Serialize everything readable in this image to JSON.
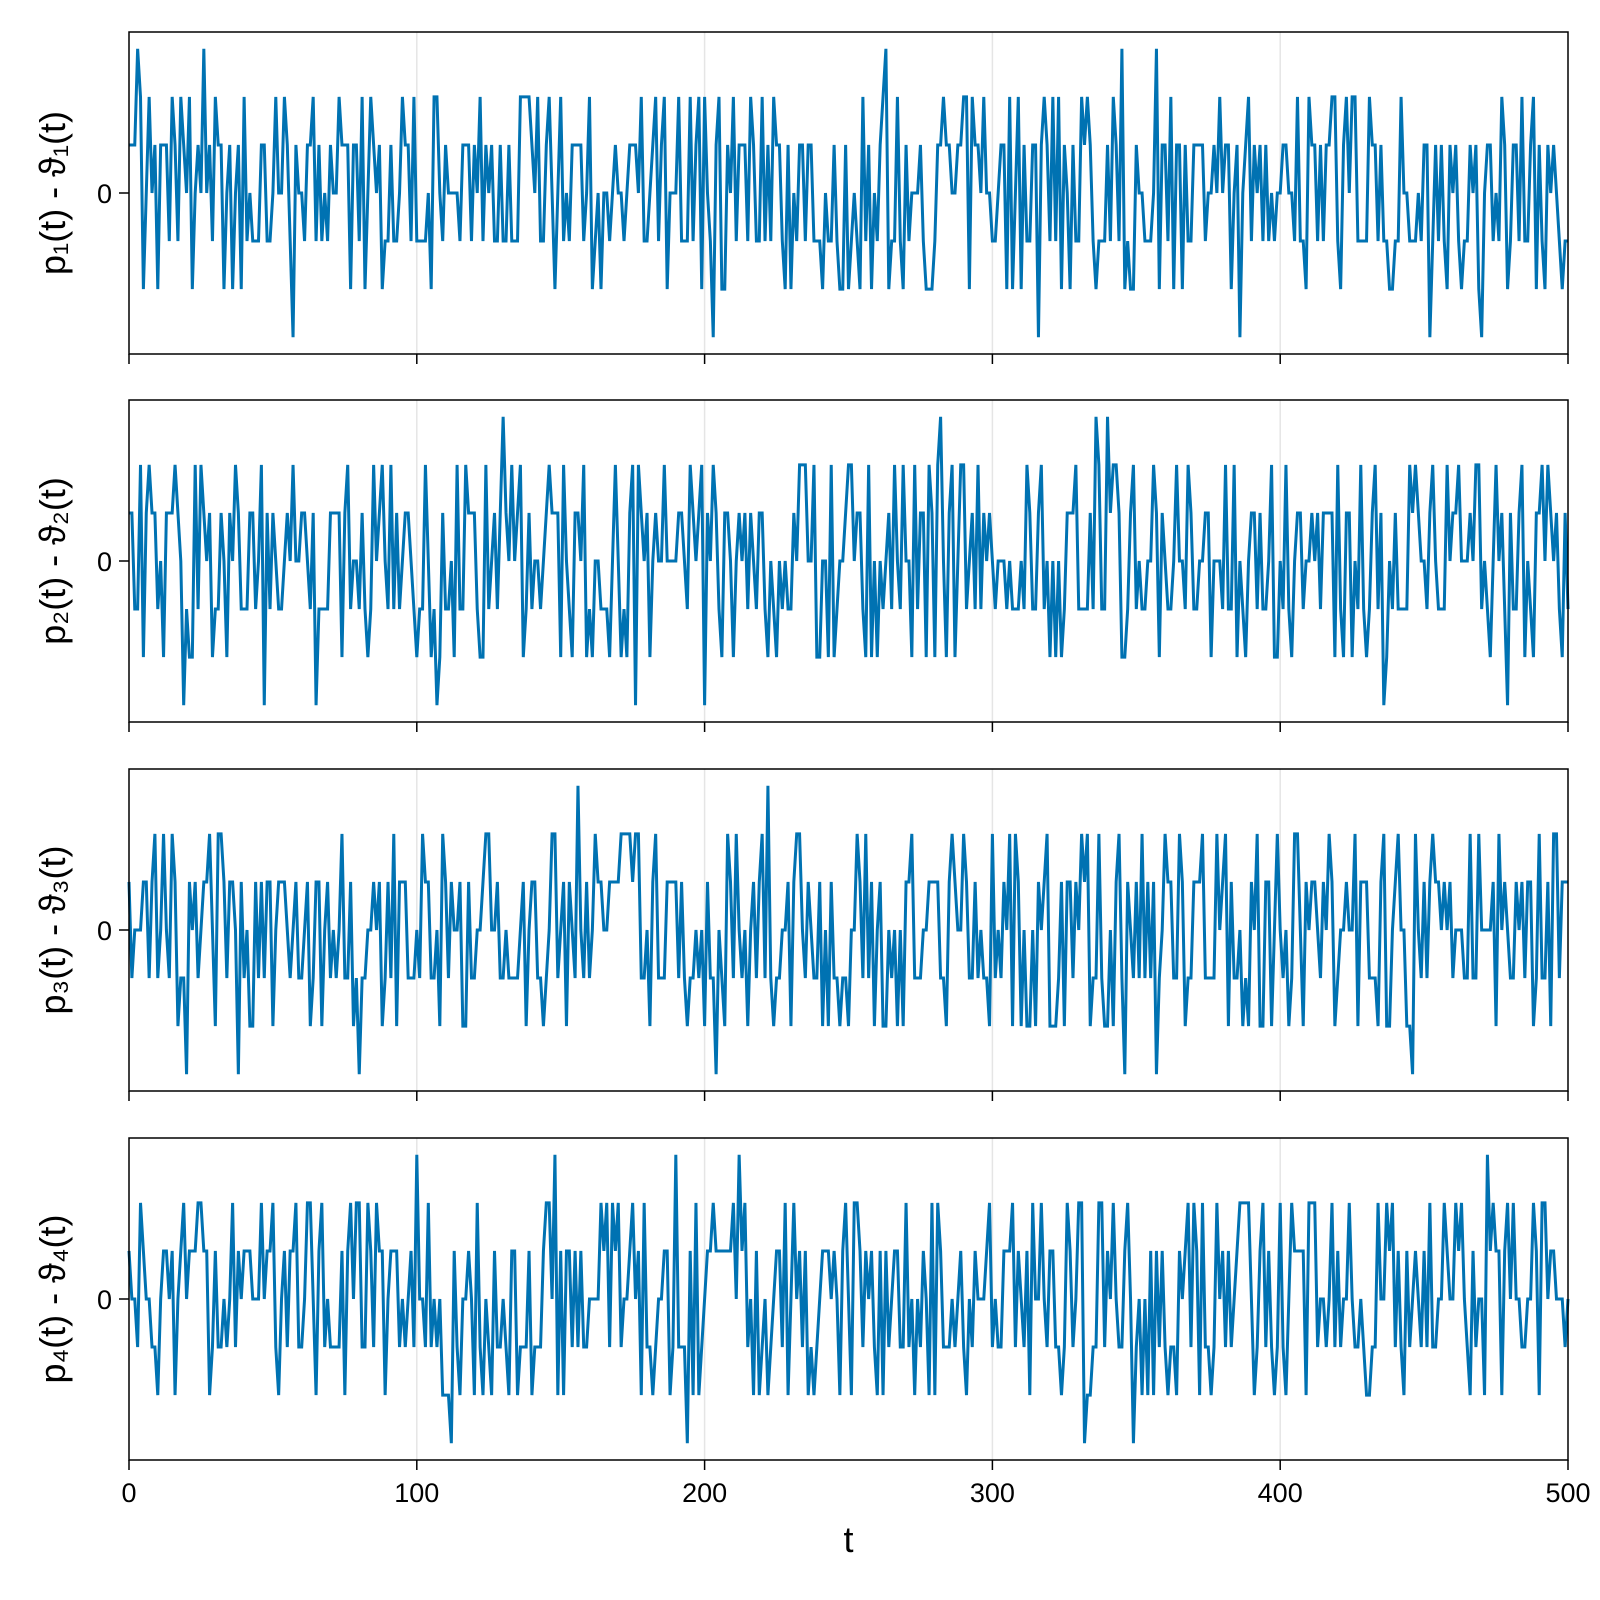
{
  "chart_data": {
    "type": "line",
    "layout": "stacked-panels-shared-x",
    "xlabel": "t",
    "xlim": [
      0,
      500
    ],
    "x_ticks": [
      0,
      100,
      200,
      300,
      400,
      500
    ],
    "x_tick_labels": [
      "0",
      "100",
      "200",
      "300",
      "400",
      "500"
    ],
    "grid": "vertical",
    "color": "#0072b2",
    "series_note": "Each panel is a stepwise integer-valued deviation series (levels -3..3), one value per unit of t from 0 to 500.",
    "panels": [
      {
        "ylabel": "p₁(t) - ϑ₁(t)",
        "ylim": [
          -3.35,
          3.35
        ],
        "y_ticks": [
          0
        ],
        "y_tick_labels": [
          "0"
        ],
        "seed": 11,
        "extremes": [
          {
            "t": 3,
            "value": 3
          },
          {
            "t": 26,
            "value": 3
          },
          {
            "t": 263,
            "value": 3
          },
          {
            "t": 345,
            "value": 3
          },
          {
            "t": 357,
            "value": 3
          },
          {
            "t": 57,
            "value": -3
          },
          {
            "t": 203,
            "value": -3
          },
          {
            "t": 316,
            "value": -3
          },
          {
            "t": 386,
            "value": -3
          },
          {
            "t": 452,
            "value": -3
          },
          {
            "t": 470,
            "value": -3
          }
        ]
      },
      {
        "ylabel": "p₂(t) - ϑ₂(t)",
        "ylim": [
          -3.35,
          3.35
        ],
        "y_ticks": [
          0
        ],
        "y_tick_labels": [
          "0"
        ],
        "seed": 23,
        "extremes": [
          {
            "t": 130,
            "value": 3
          },
          {
            "t": 282,
            "value": 3
          },
          {
            "t": 336,
            "value": 3
          },
          {
            "t": 340,
            "value": 3
          },
          {
            "t": 19,
            "value": -3
          },
          {
            "t": 47,
            "value": -3
          },
          {
            "t": 65,
            "value": -3
          },
          {
            "t": 107,
            "value": -3
          },
          {
            "t": 176,
            "value": -3
          },
          {
            "t": 200,
            "value": -3
          },
          {
            "t": 436,
            "value": -3
          },
          {
            "t": 479,
            "value": -3
          }
        ]
      },
      {
        "ylabel": "p₃(t) - ϑ₃(t)",
        "ylim": [
          -3.35,
          3.35
        ],
        "y_ticks": [
          0
        ],
        "y_tick_labels": [
          "0"
        ],
        "seed": 37,
        "extremes": [
          {
            "t": 156,
            "value": 3
          },
          {
            "t": 222,
            "value": 3
          },
          {
            "t": 20,
            "value": -3
          },
          {
            "t": 38,
            "value": -3
          },
          {
            "t": 80,
            "value": -3
          },
          {
            "t": 204,
            "value": -3
          },
          {
            "t": 346,
            "value": -3
          },
          {
            "t": 357,
            "value": -3
          },
          {
            "t": 446,
            "value": -3
          }
        ]
      },
      {
        "ylabel": "p₄(t) - ϑ₄(t)",
        "ylim": [
          -3.35,
          3.35
        ],
        "y_ticks": [
          0
        ],
        "y_tick_labels": [
          "0"
        ],
        "seed": 53,
        "extremes": [
          {
            "t": 100,
            "value": 3
          },
          {
            "t": 148,
            "value": 3
          },
          {
            "t": 190,
            "value": 3
          },
          {
            "t": 212,
            "value": 3
          },
          {
            "t": 472,
            "value": 3
          },
          {
            "t": 112,
            "value": -3
          },
          {
            "t": 194,
            "value": -3
          },
          {
            "t": 332,
            "value": -3
          },
          {
            "t": 349,
            "value": -3
          }
        ]
      }
    ]
  }
}
